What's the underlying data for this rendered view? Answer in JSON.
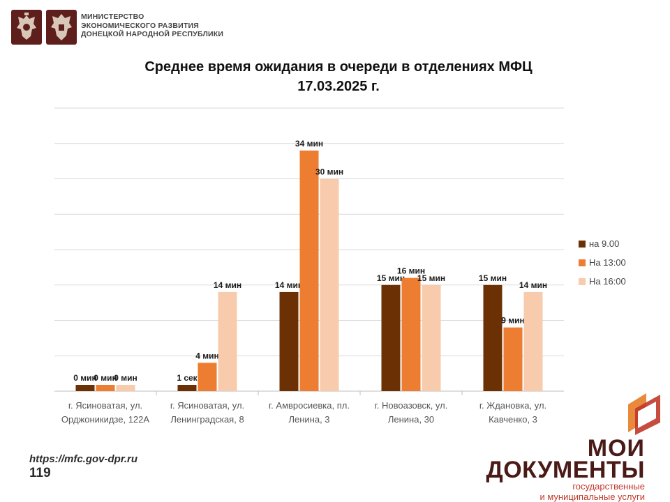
{
  "header": {
    "ministry_lines": [
      "МИНИСТЕРСТВО",
      "ЭКОНОМИЧЕСКОГО РАЗВИТИЯ",
      "ДОНЕЦКОЙ НАРОДНОЙ РЕСПУБЛИКИ"
    ],
    "emblems": [
      "russia-coat-of-arms-icon",
      "dpr-coat-of-arms-icon"
    ],
    "emblem_color": "#5e1e1b"
  },
  "chart_data": {
    "type": "bar",
    "title": "Среднее время ожидания в очереди в отделениях МФЦ",
    "subtitle": "17.03.2025   г.",
    "xlabel": "",
    "ylabel": "",
    "ylim": [
      0,
      40
    ],
    "grid": true,
    "legend_position": "right",
    "unit": "мин",
    "categories": [
      [
        "г. Ясиноватая, ул.",
        "Орджоникидзе, 122А"
      ],
      [
        "г. Ясиноватая, ул.",
        "Ленинградская, 8"
      ],
      [
        "г. Амвросиевка, пл.",
        "Ленина, 3"
      ],
      [
        "г. Новоазовск, ул.",
        "Ленина, 30"
      ],
      [
        "г. Ждановка, ул.",
        "Кавченко, 3"
      ]
    ],
    "series": [
      {
        "name": "на 9.00",
        "color": "#6b3104",
        "values": [
          0,
          0.0167,
          14,
          15,
          15
        ],
        "labels": [
          "0 мин",
          "1 сек",
          "14 мин",
          "15 мин",
          "15 мин"
        ]
      },
      {
        "name": "На 13:00",
        "color": "#ed7d31",
        "values": [
          0,
          4,
          34,
          16,
          9
        ],
        "labels": [
          "0 мин",
          "4 мин",
          "34 мин",
          "16 мин",
          "9 мин"
        ]
      },
      {
        "name": "На 16:00",
        "color": "#f7cbac",
        "values": [
          0,
          14,
          30,
          15,
          14
        ],
        "labels": [
          "0 мин",
          "14 мин",
          "30 мин",
          "15 мин",
          "14 мин"
        ]
      }
    ]
  },
  "footer": {
    "url": "https://mfc.gov-dpr.ru",
    "phone": "119"
  },
  "brand": {
    "line1": "МОИ",
    "line2": "ДОКУМЕНТЫ",
    "line3a": "государственные",
    "line3b": "и муниципальные услуги",
    "colors": {
      "dark": "#4a1a17",
      "red": "#c0392b",
      "orange": "#e8893c"
    }
  }
}
